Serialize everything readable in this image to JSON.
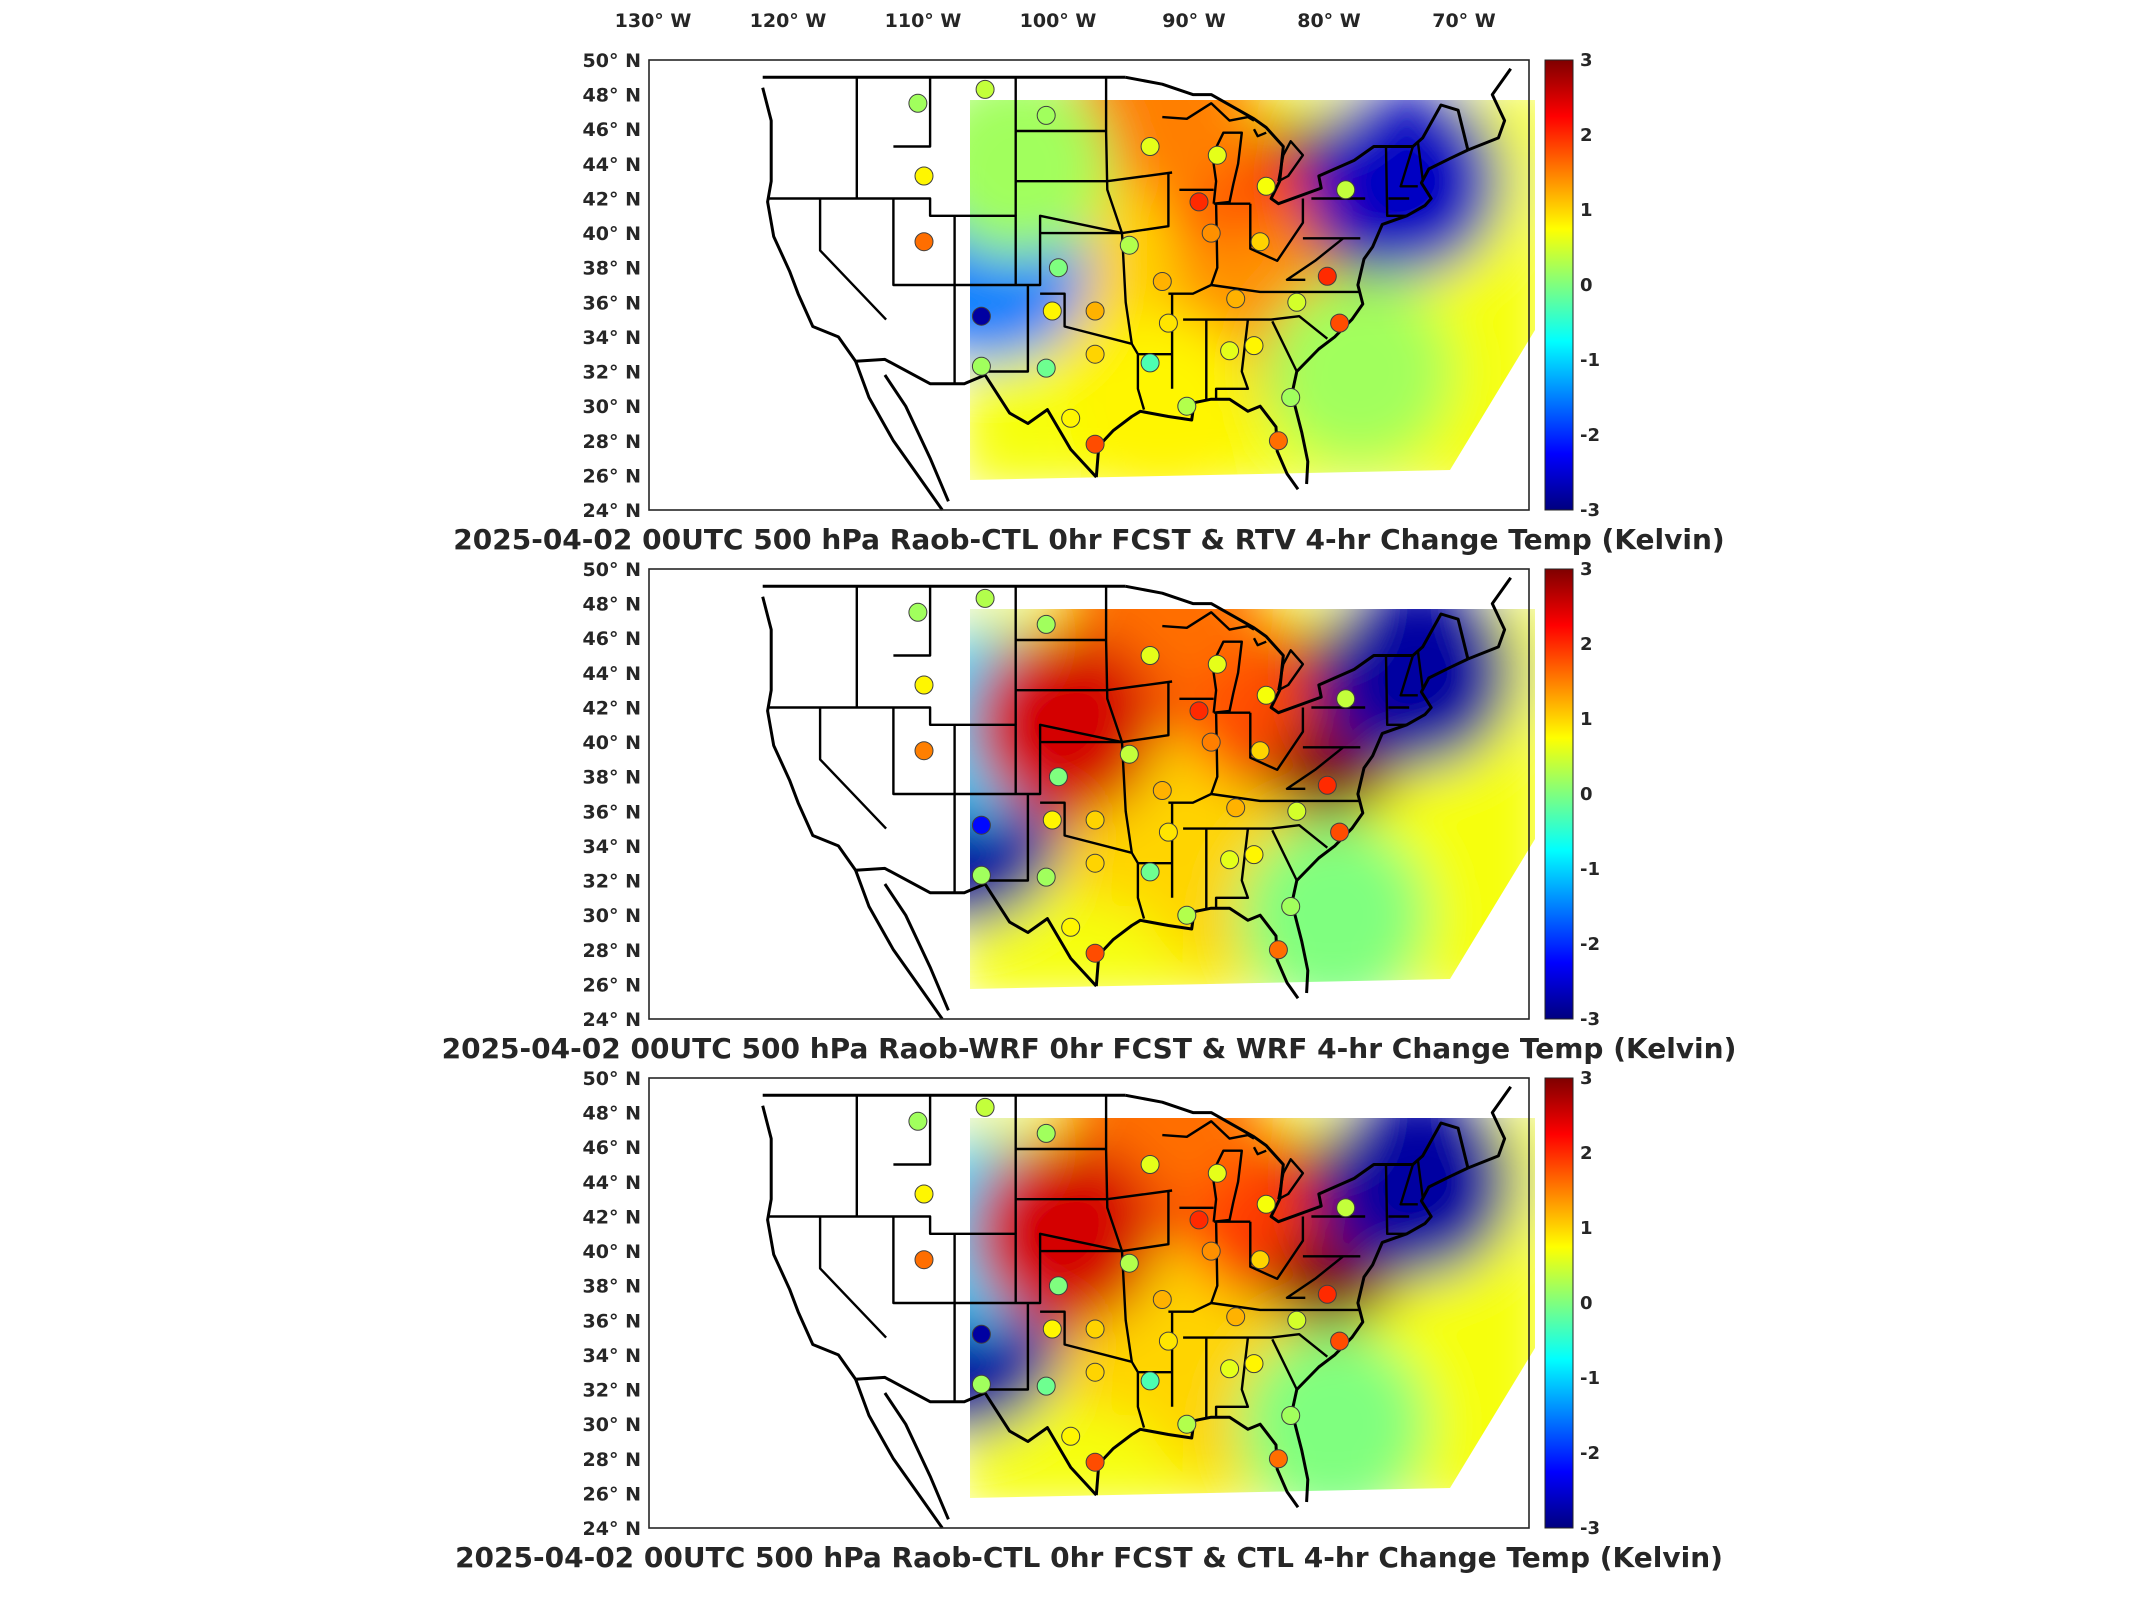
{
  "top_lon_labels": [
    "130° W",
    "120° W",
    "110° W",
    "100° W",
    "90° W",
    "80° W",
    "70° W"
  ],
  "lat_labels": [
    "50° N",
    "48° N",
    "46° N",
    "44° N",
    "42° N",
    "40° N",
    "38° N",
    "36° N",
    "34° N",
    "32° N",
    "30° N",
    "28° N",
    "26° N",
    "24° N"
  ],
  "colorbar_ticks": [
    "3",
    "2",
    "1",
    "0",
    "-1",
    "-2",
    "-3"
  ],
  "colormap": [
    "#00007f",
    "#0000ff",
    "#007fff",
    "#00ffff",
    "#7fff7f",
    "#ffff00",
    "#ff7f00",
    "#ff0000",
    "#7f0000"
  ],
  "chart_data": [
    {
      "type": "heatmap",
      "title": "2025-04-02 00UTC 500 hPa Raob-CTL 0hr FCST & RTV 4-hr Change Temp (Kelvin)",
      "xlabel": "",
      "ylabel": "",
      "lon_range": [
        -134,
        -62
      ],
      "lat_range": [
        24,
        50
      ],
      "color_range": [
        -3,
        3
      ],
      "fields": [
        {
          "lon": -80,
          "lat": 41,
          "value": 3.0
        },
        {
          "lon": -88,
          "lat": 41,
          "value": 1.8
        },
        {
          "lon": -92,
          "lat": 47,
          "value": 1.5
        },
        {
          "lon": -98,
          "lat": 38,
          "value": 1.0
        },
        {
          "lon": -84,
          "lat": 35,
          "value": 1.4
        },
        {
          "lon": -72,
          "lat": 43,
          "value": -2.6
        },
        {
          "lon": -106,
          "lat": 38,
          "value": -1.5
        },
        {
          "lon": -104,
          "lat": 44,
          "value": 0.2
        },
        {
          "lon": -92,
          "lat": 30,
          "value": 0.8
        },
        {
          "lon": -76,
          "lat": 32,
          "value": 0.2
        }
      ],
      "stations": [
        {
          "lon": -112,
          "lat": 47.5,
          "value": 0.2
        },
        {
          "lon": -106.5,
          "lat": 48.3,
          "value": 0.4
        },
        {
          "lon": -101.5,
          "lat": 46.8,
          "value": 0.2
        },
        {
          "lon": -111.5,
          "lat": 43.3,
          "value": 0.8
        },
        {
          "lon": -111.5,
          "lat": 39.5,
          "value": 1.6
        },
        {
          "lon": -106.8,
          "lat": 35.2,
          "value": -2.8
        },
        {
          "lon": -106.8,
          "lat": 32.3,
          "value": 0.2
        },
        {
          "lon": -101.5,
          "lat": 32.2,
          "value": -0.1
        },
        {
          "lon": -101.0,
          "lat": 35.5,
          "value": 0.8
        },
        {
          "lon": -97.5,
          "lat": 35.5,
          "value": 1.2
        },
        {
          "lon": -100.5,
          "lat": 38.0,
          "value": 0.0
        },
        {
          "lon": -94.7,
          "lat": 39.3,
          "value": 0.3
        },
        {
          "lon": -97.5,
          "lat": 33.0,
          "value": 1.0
        },
        {
          "lon": -93.0,
          "lat": 32.5,
          "value": -0.3
        },
        {
          "lon": -92.0,
          "lat": 37.2,
          "value": 1.2
        },
        {
          "lon": -91.5,
          "lat": 34.8,
          "value": 0.9
        },
        {
          "lon": -93.0,
          "lat": 45.0,
          "value": 0.6
        },
        {
          "lon": -89.0,
          "lat": 41.8,
          "value": 2.0
        },
        {
          "lon": -88.0,
          "lat": 40.0,
          "value": 1.4
        },
        {
          "lon": -87.5,
          "lat": 44.5,
          "value": 0.6
        },
        {
          "lon": -83.5,
          "lat": 42.7,
          "value": 0.7
        },
        {
          "lon": -84.0,
          "lat": 39.5,
          "value": 1.0
        },
        {
          "lon": -86.0,
          "lat": 36.2,
          "value": 1.2
        },
        {
          "lon": -86.5,
          "lat": 33.2,
          "value": 0.6
        },
        {
          "lon": -84.5,
          "lat": 33.5,
          "value": 0.8
        },
        {
          "lon": -81.0,
          "lat": 36.0,
          "value": 0.5
        },
        {
          "lon": -77.5,
          "lat": 34.8,
          "value": 1.8
        },
        {
          "lon": -78.5,
          "lat": 37.5,
          "value": 2.0
        },
        {
          "lon": -77.0,
          "lat": 42.5,
          "value": 0.4
        },
        {
          "lon": -81.5,
          "lat": 30.5,
          "value": 0.2
        },
        {
          "lon": -82.5,
          "lat": 28.0,
          "value": 1.6
        },
        {
          "lon": -97.5,
          "lat": 27.8,
          "value": 1.8
        },
        {
          "lon": -99.5,
          "lat": 29.3,
          "value": 0.8
        },
        {
          "lon": -90.0,
          "lat": 30.0,
          "value": 0.3
        }
      ]
    },
    {
      "type": "heatmap",
      "title": "2025-04-02 00UTC 500 hPa Raob-WRF 0hr FCST & WRF 4-hr Change Temp (Kelvin)",
      "xlabel": "",
      "ylabel": "",
      "lon_range": [
        -134,
        -62
      ],
      "lat_range": [
        24,
        50
      ],
      "color_range": [
        -3,
        3
      ],
      "fields": [
        {
          "lon": -79,
          "lat": 41,
          "value": 3.0
        },
        {
          "lon": -88,
          "lat": 43,
          "value": 1.8
        },
        {
          "lon": -92,
          "lat": 48,
          "value": 1.6
        },
        {
          "lon": -95,
          "lat": 36,
          "value": 1.0
        },
        {
          "lon": -86,
          "lat": 32,
          "value": 1.0
        },
        {
          "lon": -71,
          "lat": 44,
          "value": -2.8
        },
        {
          "lon": -108,
          "lat": 35,
          "value": -2.8
        },
        {
          "lon": -106,
          "lat": 41,
          "value": -1.0
        },
        {
          "lon": -100,
          "lat": 41,
          "value": 2.5
        },
        {
          "lon": -78,
          "lat": 30,
          "value": 0.0
        }
      ],
      "stations": [
        {
          "lon": -112,
          "lat": 47.5,
          "value": 0.2
        },
        {
          "lon": -106.5,
          "lat": 48.3,
          "value": 0.3
        },
        {
          "lon": -101.5,
          "lat": 46.8,
          "value": 0.2
        },
        {
          "lon": -111.5,
          "lat": 43.3,
          "value": 0.8
        },
        {
          "lon": -111.5,
          "lat": 39.5,
          "value": 1.5
        },
        {
          "lon": -106.8,
          "lat": 35.2,
          "value": -2.2
        },
        {
          "lon": -106.8,
          "lat": 32.3,
          "value": 0.2
        },
        {
          "lon": -101.5,
          "lat": 32.2,
          "value": 0.2
        },
        {
          "lon": -101.0,
          "lat": 35.5,
          "value": 0.8
        },
        {
          "lon": -97.5,
          "lat": 35.5,
          "value": 1.0
        },
        {
          "lon": -100.5,
          "lat": 38.0,
          "value": 0.0
        },
        {
          "lon": -94.7,
          "lat": 39.3,
          "value": 0.4
        },
        {
          "lon": -97.5,
          "lat": 33.0,
          "value": 1.0
        },
        {
          "lon": -93.0,
          "lat": 32.5,
          "value": -0.1
        },
        {
          "lon": -92.0,
          "lat": 37.2,
          "value": 1.2
        },
        {
          "lon": -91.5,
          "lat": 34.8,
          "value": 0.9
        },
        {
          "lon": -93.0,
          "lat": 45.0,
          "value": 0.6
        },
        {
          "lon": -89.0,
          "lat": 41.8,
          "value": 2.0
        },
        {
          "lon": -88.0,
          "lat": 40.0,
          "value": 1.5
        },
        {
          "lon": -87.5,
          "lat": 44.5,
          "value": 0.6
        },
        {
          "lon": -83.5,
          "lat": 42.7,
          "value": 0.7
        },
        {
          "lon": -84.0,
          "lat": 39.5,
          "value": 1.0
        },
        {
          "lon": -86.0,
          "lat": 36.2,
          "value": 1.2
        },
        {
          "lon": -86.5,
          "lat": 33.2,
          "value": 0.6
        },
        {
          "lon": -84.5,
          "lat": 33.5,
          "value": 0.8
        },
        {
          "lon": -81.0,
          "lat": 36.0,
          "value": 0.5
        },
        {
          "lon": -77.5,
          "lat": 34.8,
          "value": 1.8
        },
        {
          "lon": -78.5,
          "lat": 37.5,
          "value": 2.0
        },
        {
          "lon": -77.0,
          "lat": 42.5,
          "value": 0.4
        },
        {
          "lon": -81.5,
          "lat": 30.5,
          "value": 0.2
        },
        {
          "lon": -82.5,
          "lat": 28.0,
          "value": 1.6
        },
        {
          "lon": -97.5,
          "lat": 27.8,
          "value": 1.8
        },
        {
          "lon": -99.5,
          "lat": 29.3,
          "value": 0.8
        },
        {
          "lon": -90.0,
          "lat": 30.0,
          "value": 0.3
        }
      ]
    },
    {
      "type": "heatmap",
      "title": "2025-04-02 00UTC 500 hPa Raob-CTL 0hr FCST & CTL 4-hr Change Temp (Kelvin)",
      "xlabel": "",
      "ylabel": "",
      "lon_range": [
        -134,
        -62
      ],
      "lat_range": [
        24,
        50
      ],
      "color_range": [
        -3,
        3
      ],
      "fields": [
        {
          "lon": -79,
          "lat": 41,
          "value": 3.0
        },
        {
          "lon": -88,
          "lat": 43,
          "value": 1.9
        },
        {
          "lon": -92,
          "lat": 48,
          "value": 1.6
        },
        {
          "lon": -95,
          "lat": 36,
          "value": 1.0
        },
        {
          "lon": -86,
          "lat": 32,
          "value": 1.0
        },
        {
          "lon": -71,
          "lat": 44,
          "value": -2.8
        },
        {
          "lon": -108,
          "lat": 35,
          "value": -2.8
        },
        {
          "lon": -106,
          "lat": 41,
          "value": -1.0
        },
        {
          "lon": -100,
          "lat": 41,
          "value": 2.5
        },
        {
          "lon": -78,
          "lat": 30,
          "value": 0.0
        }
      ],
      "stations": [
        {
          "lon": -112,
          "lat": 47.5,
          "value": 0.2
        },
        {
          "lon": -106.5,
          "lat": 48.3,
          "value": 0.4
        },
        {
          "lon": -101.5,
          "lat": 46.8,
          "value": 0.2
        },
        {
          "lon": -111.5,
          "lat": 43.3,
          "value": 0.8
        },
        {
          "lon": -111.5,
          "lat": 39.5,
          "value": 1.6
        },
        {
          "lon": -106.8,
          "lat": 35.2,
          "value": -2.8
        },
        {
          "lon": -106.8,
          "lat": 32.3,
          "value": 0.2
        },
        {
          "lon": -101.5,
          "lat": 32.2,
          "value": -0.1
        },
        {
          "lon": -101.0,
          "lat": 35.5,
          "value": 0.8
        },
        {
          "lon": -97.5,
          "lat": 35.5,
          "value": 1.0
        },
        {
          "lon": -100.5,
          "lat": 38.0,
          "value": 0.0
        },
        {
          "lon": -94.7,
          "lat": 39.3,
          "value": 0.3
        },
        {
          "lon": -97.5,
          "lat": 33.0,
          "value": 1.0
        },
        {
          "lon": -93.0,
          "lat": 32.5,
          "value": -0.3
        },
        {
          "lon": -92.0,
          "lat": 37.2,
          "value": 1.2
        },
        {
          "lon": -91.5,
          "lat": 34.8,
          "value": 0.9
        },
        {
          "lon": -93.0,
          "lat": 45.0,
          "value": 0.6
        },
        {
          "lon": -89.0,
          "lat": 41.8,
          "value": 2.0
        },
        {
          "lon": -88.0,
          "lat": 40.0,
          "value": 1.4
        },
        {
          "lon": -87.5,
          "lat": 44.5,
          "value": 0.6
        },
        {
          "lon": -83.5,
          "lat": 42.7,
          "value": 0.7
        },
        {
          "lon": -84.0,
          "lat": 39.5,
          "value": 1.0
        },
        {
          "lon": -86.0,
          "lat": 36.2,
          "value": 1.2
        },
        {
          "lon": -86.5,
          "lat": 33.2,
          "value": 0.6
        },
        {
          "lon": -84.5,
          "lat": 33.5,
          "value": 0.8
        },
        {
          "lon": -81.0,
          "lat": 36.0,
          "value": 0.5
        },
        {
          "lon": -77.5,
          "lat": 34.8,
          "value": 1.8
        },
        {
          "lon": -78.5,
          "lat": 37.5,
          "value": 2.0
        },
        {
          "lon": -77.0,
          "lat": 42.5,
          "value": 0.4
        },
        {
          "lon": -81.5,
          "lat": 30.5,
          "value": 0.2
        },
        {
          "lon": -82.5,
          "lat": 28.0,
          "value": 1.6
        },
        {
          "lon": -97.5,
          "lat": 27.8,
          "value": 1.8
        },
        {
          "lon": -99.5,
          "lat": 29.3,
          "value": 0.8
        },
        {
          "lon": -90.0,
          "lat": 30.0,
          "value": 0.3
        }
      ]
    }
  ]
}
